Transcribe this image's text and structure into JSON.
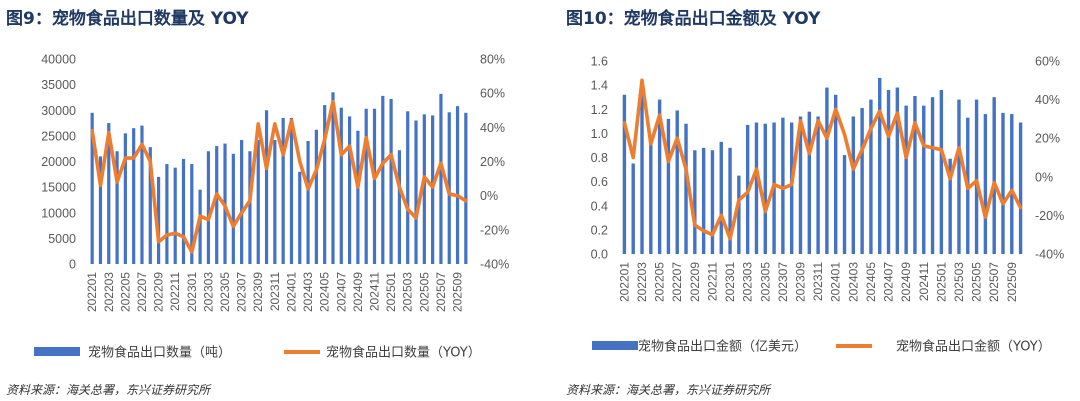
{
  "chart_data": [
    {
      "type": "bar+line",
      "title": "图9：宠物食品出口数量及 YOY",
      "source": "资料来源：海关总署，东兴证券研究所",
      "categories": [
        "202201",
        "202202",
        "202203",
        "202204",
        "202205",
        "202206",
        "202207",
        "202208",
        "202209",
        "202210",
        "202211",
        "202212",
        "202301",
        "202302",
        "202303",
        "202304",
        "202305",
        "202306",
        "202307",
        "202308",
        "202309",
        "202310",
        "202311",
        "202312",
        "202401",
        "202402",
        "202403",
        "202404",
        "202405",
        "202406",
        "202407",
        "202408",
        "202409",
        "202410",
        "202411",
        "202412",
        "202501",
        "202502",
        "202503",
        "202504",
        "202505",
        "202506",
        "202507",
        "202508",
        "202509",
        "202510"
      ],
      "xtick_labels": [
        "202201",
        "202203",
        "202205",
        "202207",
        "202209",
        "202211",
        "202301",
        "202303",
        "202305",
        "202307",
        "202309",
        "202311",
        "202401",
        "202403",
        "202405",
        "202407",
        "202409",
        "202411",
        "202501",
        "202503",
        "202505",
        "202507",
        "202509"
      ],
      "series": [
        {
          "name": "宠物食品出口数量（吨）",
          "kind": "bar",
          "axis": "left",
          "color": "#4472c4",
          "values": [
            29500,
            21000,
            27500,
            22000,
            25500,
            26500,
            27000,
            22800,
            17000,
            19500,
            18800,
            20500,
            19500,
            14500,
            22000,
            23000,
            23500,
            21500,
            24200,
            22000,
            24200,
            30000,
            24200,
            28500,
            28500,
            18000,
            24000,
            26200,
            31000,
            33500,
            30500,
            28800,
            26000,
            30300,
            30300,
            32800,
            32200,
            22200,
            29800,
            28000,
            29200,
            29000,
            33200,
            29600,
            30800,
            29500
          ]
        },
        {
          "name": "宠物食品出口数量（YOY）",
          "kind": "line",
          "axis": "right",
          "color": "#ed7d31",
          "values": [
            38,
            6,
            37,
            8,
            22,
            22,
            30,
            20,
            -27,
            -23,
            -22,
            -24,
            -33,
            -12,
            -14,
            1,
            -6,
            -18,
            -10,
            -3,
            42,
            16,
            42,
            24,
            44,
            20,
            4,
            15,
            33,
            55,
            24,
            29,
            5,
            34,
            10,
            19,
            24,
            5,
            -8,
            -13,
            11,
            5,
            19,
            1,
            0,
            -3
          ]
        }
      ],
      "left_axis": {
        "min": 0,
        "max": 40000,
        "step": 5000,
        "ticks": [
          "0",
          "5000",
          "10000",
          "15000",
          "20000",
          "25000",
          "30000",
          "35000",
          "40000"
        ]
      },
      "right_axis": {
        "min": -40,
        "max": 80,
        "step": 20,
        "ticks": [
          "-40%",
          "-20%",
          "0%",
          "20%",
          "40%",
          "60%",
          "80%"
        ]
      }
    },
    {
      "type": "bar+line",
      "title": "图10：宠物食品出口金额及 YOY",
      "source": "资料来源：海关总署，东兴证券研究所",
      "categories": [
        "202201",
        "202202",
        "202203",
        "202204",
        "202205",
        "202206",
        "202207",
        "202208",
        "202209",
        "202210",
        "202211",
        "202212",
        "202301",
        "202302",
        "202303",
        "202304",
        "202305",
        "202306",
        "202307",
        "202308",
        "202309",
        "202310",
        "202311",
        "202312",
        "202401",
        "202402",
        "202403",
        "202404",
        "202405",
        "202406",
        "202407",
        "202408",
        "202409",
        "202410",
        "202411",
        "202412",
        "202501",
        "202502",
        "202503",
        "202504",
        "202505",
        "202506",
        "202507",
        "202508",
        "202509",
        "202510"
      ],
      "xtick_labels": [
        "202201",
        "202203",
        "202205",
        "202207",
        "202209",
        "202211",
        "202301",
        "202303",
        "202305",
        "202307",
        "202309",
        "202311",
        "202401",
        "202403",
        "202405",
        "202407",
        "202409",
        "202411",
        "202501",
        "202503",
        "202505",
        "202507",
        "202509"
      ],
      "series": [
        {
          "name": "宠物食品出口金额（亿美元）",
          "kind": "bar",
          "axis": "left",
          "color": "#4472c4",
          "values": [
            1.32,
            0.75,
            1.33,
            0.95,
            1.28,
            1.12,
            1.19,
            1.08,
            0.86,
            0.88,
            0.86,
            0.93,
            0.88,
            0.65,
            1.07,
            1.09,
            1.08,
            1.09,
            1.13,
            1.09,
            1.14,
            1.18,
            1.14,
            1.38,
            1.32,
            0.82,
            1.14,
            1.21,
            1.28,
            1.46,
            1.36,
            1.38,
            1.23,
            1.31,
            1.23,
            1.3,
            1.36,
            0.79,
            1.28,
            1.13,
            1.28,
            1.16,
            1.3,
            1.17,
            1.16,
            1.09
          ]
        },
        {
          "name": "宠物食品出口金额（YOY）",
          "kind": "line",
          "axis": "right",
          "color": "#ed7d31",
          "values": [
            28,
            10,
            50,
            17,
            32,
            8,
            20,
            4,
            -25,
            -28,
            -30,
            -20,
            -32,
            -12,
            -8,
            4,
            -18,
            -4,
            -6,
            -4,
            29,
            12,
            29,
            20,
            35,
            22,
            4,
            14,
            25,
            34,
            21,
            33,
            10,
            28,
            16,
            15,
            14,
            -1,
            15,
            -6,
            -2,
            -21,
            -3,
            -14,
            -7,
            -16
          ]
        }
      ],
      "left_axis": {
        "min": 0,
        "max": 1.6,
        "step": 0.2,
        "ticks": [
          "0.0",
          "0.2",
          "0.4",
          "0.6",
          "0.8",
          "1.0",
          "1.2",
          "1.4",
          "1.6"
        ]
      },
      "right_axis": {
        "min": -40,
        "max": 60,
        "step": 20,
        "ticks": [
          "-40%",
          "-20%",
          "0%",
          "20%",
          "40%",
          "60%"
        ]
      }
    }
  ]
}
